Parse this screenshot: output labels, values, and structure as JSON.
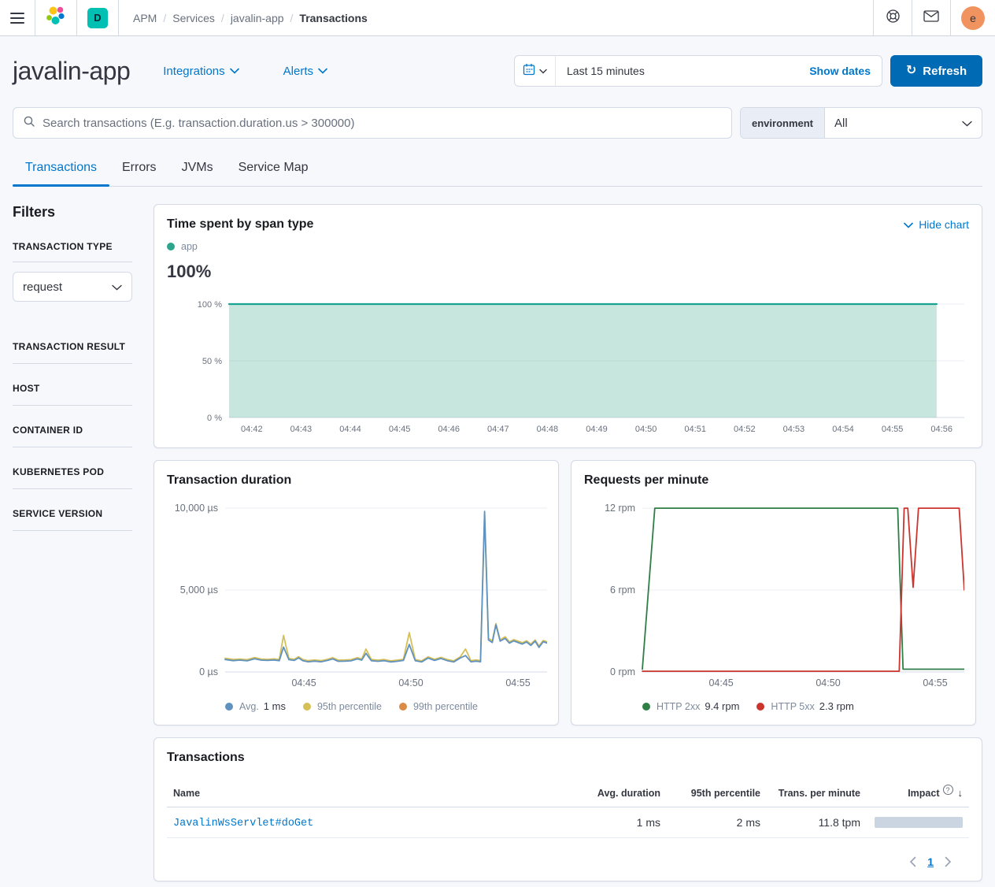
{
  "colors": {
    "primary": "#0077CC",
    "refresh_button": "#006BB4",
    "space_badge": "#00BFB3",
    "avatar": "#F0935F",
    "text": "#343741",
    "muted": "#69707D",
    "impact_bar": "#CBD5E2"
  },
  "topbar": {
    "breadcrumbs": [
      "APM",
      "Services",
      "javalin-app",
      "Transactions"
    ],
    "space_badge": "D",
    "avatar_initial": "e"
  },
  "header": {
    "title": "javalin-app",
    "integrations_label": "Integrations",
    "alerts_label": "Alerts",
    "time_range": "Last 15 minutes",
    "show_dates_label": "Show dates",
    "refresh_label": "Refresh"
  },
  "search": {
    "placeholder": "Search transactions (E.g. transaction.duration.us > 300000)",
    "environment_label": "environment",
    "environment_value": "All"
  },
  "tabs": [
    {
      "label": "Transactions",
      "active": true
    },
    {
      "label": "Errors",
      "active": false
    },
    {
      "label": "JVMs",
      "active": false
    },
    {
      "label": "Service Map",
      "active": false
    }
  ],
  "filters": {
    "title": "Filters",
    "transaction_type_label": "TRANSACTION TYPE",
    "transaction_type_value": "request",
    "sections": [
      "TRANSACTION RESULT",
      "HOST",
      "CONTAINER ID",
      "KUBERNETES POD",
      "SERVICE VERSION"
    ]
  },
  "chart_data": [
    {
      "id": "span_type",
      "type": "area",
      "title": "Time spent by span type",
      "hide_chart_label": "Hide chart",
      "headline_value": "100%",
      "legend": [
        {
          "label": "app",
          "color": "#2CA58C"
        }
      ],
      "x_domain": [
        41.54,
        56.46
      ],
      "y_domain": [
        0,
        104.2
      ],
      "y_ticks": [
        {
          "v": 100,
          "label": "100 %"
        },
        {
          "v": 50,
          "label": "50 %"
        },
        {
          "v": 0,
          "label": "0 %"
        }
      ],
      "x_ticks": [
        {
          "v": 42,
          "label": "04:42"
        },
        {
          "v": 43,
          "label": "04:43"
        },
        {
          "v": 44,
          "label": "04:44"
        },
        {
          "v": 45,
          "label": "04:45"
        },
        {
          "v": 46,
          "label": "04:46"
        },
        {
          "v": 47,
          "label": "04:47"
        },
        {
          "v": 48,
          "label": "04:48"
        },
        {
          "v": 49,
          "label": "04:49"
        },
        {
          "v": 50,
          "label": "04:50"
        },
        {
          "v": 51,
          "label": "04:51"
        },
        {
          "v": 52,
          "label": "04:52"
        },
        {
          "v": 53,
          "label": "04:53"
        },
        {
          "v": 54,
          "label": "04:54"
        },
        {
          "v": 55,
          "label": "04:55"
        },
        {
          "v": 56,
          "label": "04:56"
        }
      ],
      "series": [
        {
          "name": "app",
          "color": "#1BA392",
          "width": 2.2,
          "fill": "rgba(84,179,153,0.33)",
          "line_points": [
            [
              41.54,
              100
            ],
            [
              55.9,
              100
            ]
          ],
          "points": [
            [
              41.54,
              100
            ],
            [
              55.9,
              100
            ],
            [
              55.9,
              0.3
            ]
          ]
        }
      ]
    },
    {
      "id": "duration",
      "type": "line",
      "title": "Transaction duration",
      "x_domain": [
        41.32,
        56.36
      ],
      "y_domain": [
        0,
        10290
      ],
      "y_ticks": [
        {
          "v": 10000,
          "label": "10,000 µs"
        },
        {
          "v": 5000,
          "label": "5,000 µs"
        },
        {
          "v": 0,
          "label": "0 µs"
        }
      ],
      "x_ticks": [
        {
          "v": 45,
          "label": "04:45"
        },
        {
          "v": 50,
          "label": "04:50"
        },
        {
          "v": 55,
          "label": "04:55"
        }
      ],
      "legend": [
        {
          "label": "Avg.",
          "value": "1 ms",
          "color": "#6092C0"
        },
        {
          "label": "95th percentile",
          "value": "",
          "color": "#D6BF57"
        },
        {
          "label": "99th percentile",
          "value": "",
          "color": "#DA8B45"
        }
      ],
      "series": [
        {
          "name": "95th percentile",
          "color": "#D6BF57",
          "width": 1.8,
          "points": [
            [
              41.32,
              830
            ],
            [
              41.7,
              760
            ],
            [
              42.0,
              790
            ],
            [
              42.35,
              750
            ],
            [
              42.7,
              880
            ],
            [
              43.0,
              790
            ],
            [
              43.3,
              770
            ],
            [
              43.6,
              800
            ],
            [
              43.85,
              760
            ],
            [
              44.05,
              2230
            ],
            [
              44.3,
              820
            ],
            [
              44.55,
              770
            ],
            [
              44.75,
              930
            ],
            [
              44.95,
              760
            ],
            [
              45.2,
              690
            ],
            [
              45.5,
              730
            ],
            [
              45.8,
              690
            ],
            [
              46.1,
              770
            ],
            [
              46.35,
              870
            ],
            [
              46.6,
              720
            ],
            [
              46.9,
              730
            ],
            [
              47.2,
              750
            ],
            [
              47.5,
              870
            ],
            [
              47.7,
              790
            ],
            [
              47.9,
              1400
            ],
            [
              48.15,
              760
            ],
            [
              48.45,
              720
            ],
            [
              48.75,
              760
            ],
            [
              49.05,
              680
            ],
            [
              49.35,
              720
            ],
            [
              49.65,
              770
            ],
            [
              49.92,
              2400
            ],
            [
              50.2,
              760
            ],
            [
              50.5,
              680
            ],
            [
              50.8,
              920
            ],
            [
              51.1,
              770
            ],
            [
              51.4,
              890
            ],
            [
              51.7,
              760
            ],
            [
              52.0,
              680
            ],
            [
              52.3,
              920
            ],
            [
              52.55,
              1400
            ],
            [
              52.8,
              690
            ],
            [
              53.05,
              730
            ],
            [
              53.25,
              690
            ],
            [
              53.44,
              9600
            ],
            [
              53.62,
              2050
            ],
            [
              53.8,
              1900
            ],
            [
              53.97,
              2950
            ],
            [
              54.17,
              1950
            ],
            [
              54.4,
              2150
            ],
            [
              54.6,
              1830
            ],
            [
              54.8,
              1970
            ],
            [
              55.0,
              1880
            ],
            [
              55.2,
              1780
            ],
            [
              55.4,
              1900
            ],
            [
              55.6,
              1700
            ],
            [
              55.8,
              1950
            ],
            [
              55.98,
              1580
            ],
            [
              56.18,
              1920
            ],
            [
              56.36,
              1840
            ]
          ]
        },
        {
          "name": "Avg.",
          "color": "#6092C0",
          "width": 1.8,
          "points": [
            [
              41.32,
              760
            ],
            [
              41.7,
              690
            ],
            [
              42.0,
              720
            ],
            [
              42.35,
              680
            ],
            [
              42.7,
              810
            ],
            [
              43.0,
              720
            ],
            [
              43.3,
              700
            ],
            [
              43.6,
              730
            ],
            [
              43.85,
              690
            ],
            [
              44.05,
              1520
            ],
            [
              44.3,
              750
            ],
            [
              44.55,
              700
            ],
            [
              44.75,
              860
            ],
            [
              44.95,
              690
            ],
            [
              45.2,
              620
            ],
            [
              45.5,
              660
            ],
            [
              45.8,
              620
            ],
            [
              46.1,
              700
            ],
            [
              46.35,
              800
            ],
            [
              46.6,
              650
            ],
            [
              46.9,
              660
            ],
            [
              47.2,
              680
            ],
            [
              47.5,
              800
            ],
            [
              47.7,
              720
            ],
            [
              47.9,
              1140
            ],
            [
              48.15,
              690
            ],
            [
              48.45,
              650
            ],
            [
              48.75,
              690
            ],
            [
              49.05,
              610
            ],
            [
              49.35,
              650
            ],
            [
              49.65,
              700
            ],
            [
              49.92,
              1680
            ],
            [
              50.2,
              690
            ],
            [
              50.5,
              610
            ],
            [
              50.8,
              850
            ],
            [
              51.1,
              700
            ],
            [
              51.4,
              820
            ],
            [
              51.7,
              690
            ],
            [
              52.0,
              610
            ],
            [
              52.3,
              850
            ],
            [
              52.55,
              1000
            ],
            [
              52.8,
              620
            ],
            [
              53.05,
              660
            ],
            [
              53.25,
              620
            ],
            [
              53.44,
              9800
            ],
            [
              53.62,
              1950
            ],
            [
              53.8,
              1800
            ],
            [
              53.97,
              2880
            ],
            [
              54.17,
              1880
            ],
            [
              54.4,
              2050
            ],
            [
              54.6,
              1760
            ],
            [
              54.8,
              1900
            ],
            [
              55.0,
              1800
            ],
            [
              55.2,
              1700
            ],
            [
              55.4,
              1830
            ],
            [
              55.6,
              1620
            ],
            [
              55.8,
              1880
            ],
            [
              55.98,
              1500
            ],
            [
              56.18,
              1850
            ],
            [
              56.36,
              1760
            ]
          ]
        },
        {
          "name": "99th percentile",
          "color": "#DA8B45",
          "width": 1.8,
          "points": []
        }
      ]
    },
    {
      "id": "rpm",
      "type": "line",
      "title": "Requests per minute",
      "x_domain": [
        41.32,
        56.36
      ],
      "y_domain": [
        0,
        12.35
      ],
      "y_ticks": [
        {
          "v": 12,
          "label": "12 rpm"
        },
        {
          "v": 6,
          "label": "6 rpm"
        },
        {
          "v": 0,
          "label": "0 rpm"
        }
      ],
      "x_ticks": [
        {
          "v": 45,
          "label": "04:45"
        },
        {
          "v": 50,
          "label": "04:50"
        },
        {
          "v": 55,
          "label": "04:55"
        }
      ],
      "legend": [
        {
          "label": "HTTP 2xx",
          "value": "9.4 rpm",
          "color": "#2F7E45"
        },
        {
          "label": "HTTP 5xx",
          "value": "2.3 rpm",
          "color": "#CC342E"
        }
      ],
      "series": [
        {
          "name": "HTTP 2xx",
          "color": "#2F7E45",
          "width": 1.8,
          "points": [
            [
              41.32,
              0.2
            ],
            [
              41.9,
              12
            ],
            [
              53.25,
              12
            ],
            [
              53.5,
              0.2
            ],
            [
              56.36,
              0.2
            ]
          ]
        },
        {
          "name": "HTTP 5xx",
          "color": "#CC342E",
          "width": 1.8,
          "points": [
            [
              41.32,
              0.05
            ],
            [
              53.32,
              0.05
            ],
            [
              53.55,
              12
            ],
            [
              53.72,
              12
            ],
            [
              53.97,
              6.2
            ],
            [
              54.22,
              12
            ],
            [
              56.12,
              12
            ],
            [
              56.36,
              6.0
            ]
          ]
        }
      ]
    }
  ],
  "table": {
    "title": "Transactions",
    "columns": [
      "Name",
      "Avg. duration",
      "95th percentile",
      "Trans. per minute",
      "Impact"
    ],
    "rows": [
      {
        "name": "JavalinWsServlet#doGet",
        "avg": "1 ms",
        "p95": "2 ms",
        "tpm": "11.8 tpm",
        "impact_pct": 100
      }
    ],
    "page": "1"
  }
}
